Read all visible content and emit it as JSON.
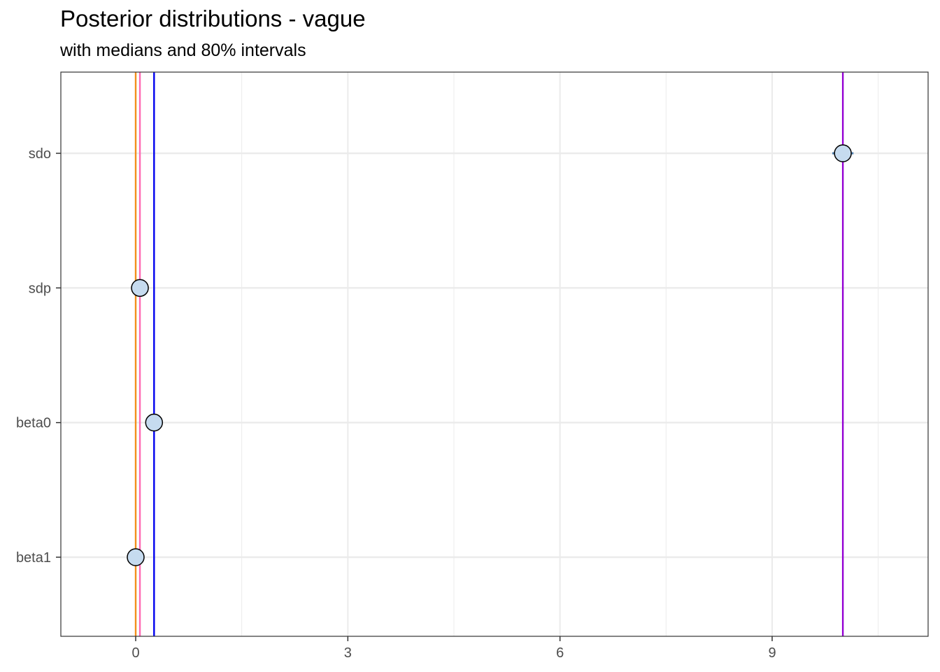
{
  "chart_data": {
    "type": "scatter",
    "title": "Posterior distributions - vague",
    "subtitle": "with medians and 80% intervals",
    "xlabel": "",
    "ylabel": "",
    "xlim": [
      -0.5,
      10.9
    ],
    "x_ticks": [
      0,
      3,
      6,
      9
    ],
    "x_tick_labels": [
      "0",
      "3",
      "6",
      "9"
    ],
    "categories": [
      "sdo",
      "sdp",
      "beta0",
      "beta1"
    ],
    "points": [
      {
        "param": "sdo",
        "median": 10.0,
        "low": 9.85,
        "high": 10.15
      },
      {
        "param": "sdp",
        "median": 0.06,
        "low": 0.04,
        "high": 0.08
      },
      {
        "param": "beta0",
        "median": 0.26,
        "low": 0.25,
        "high": 0.27
      },
      {
        "param": "beta1",
        "median": 0.0,
        "low": -0.01,
        "high": 0.01
      }
    ],
    "vlines": [
      {
        "x": 0.0,
        "color": "#F28E1C"
      },
      {
        "x": 0.06,
        "color": "#FF69B4"
      },
      {
        "x": 0.26,
        "color": "#0000EE"
      },
      {
        "x": 10.0,
        "color": "#9400D3"
      }
    ],
    "grid": true,
    "point_fill": "#C6DBEF",
    "interval_color": "#4E7FAF"
  }
}
